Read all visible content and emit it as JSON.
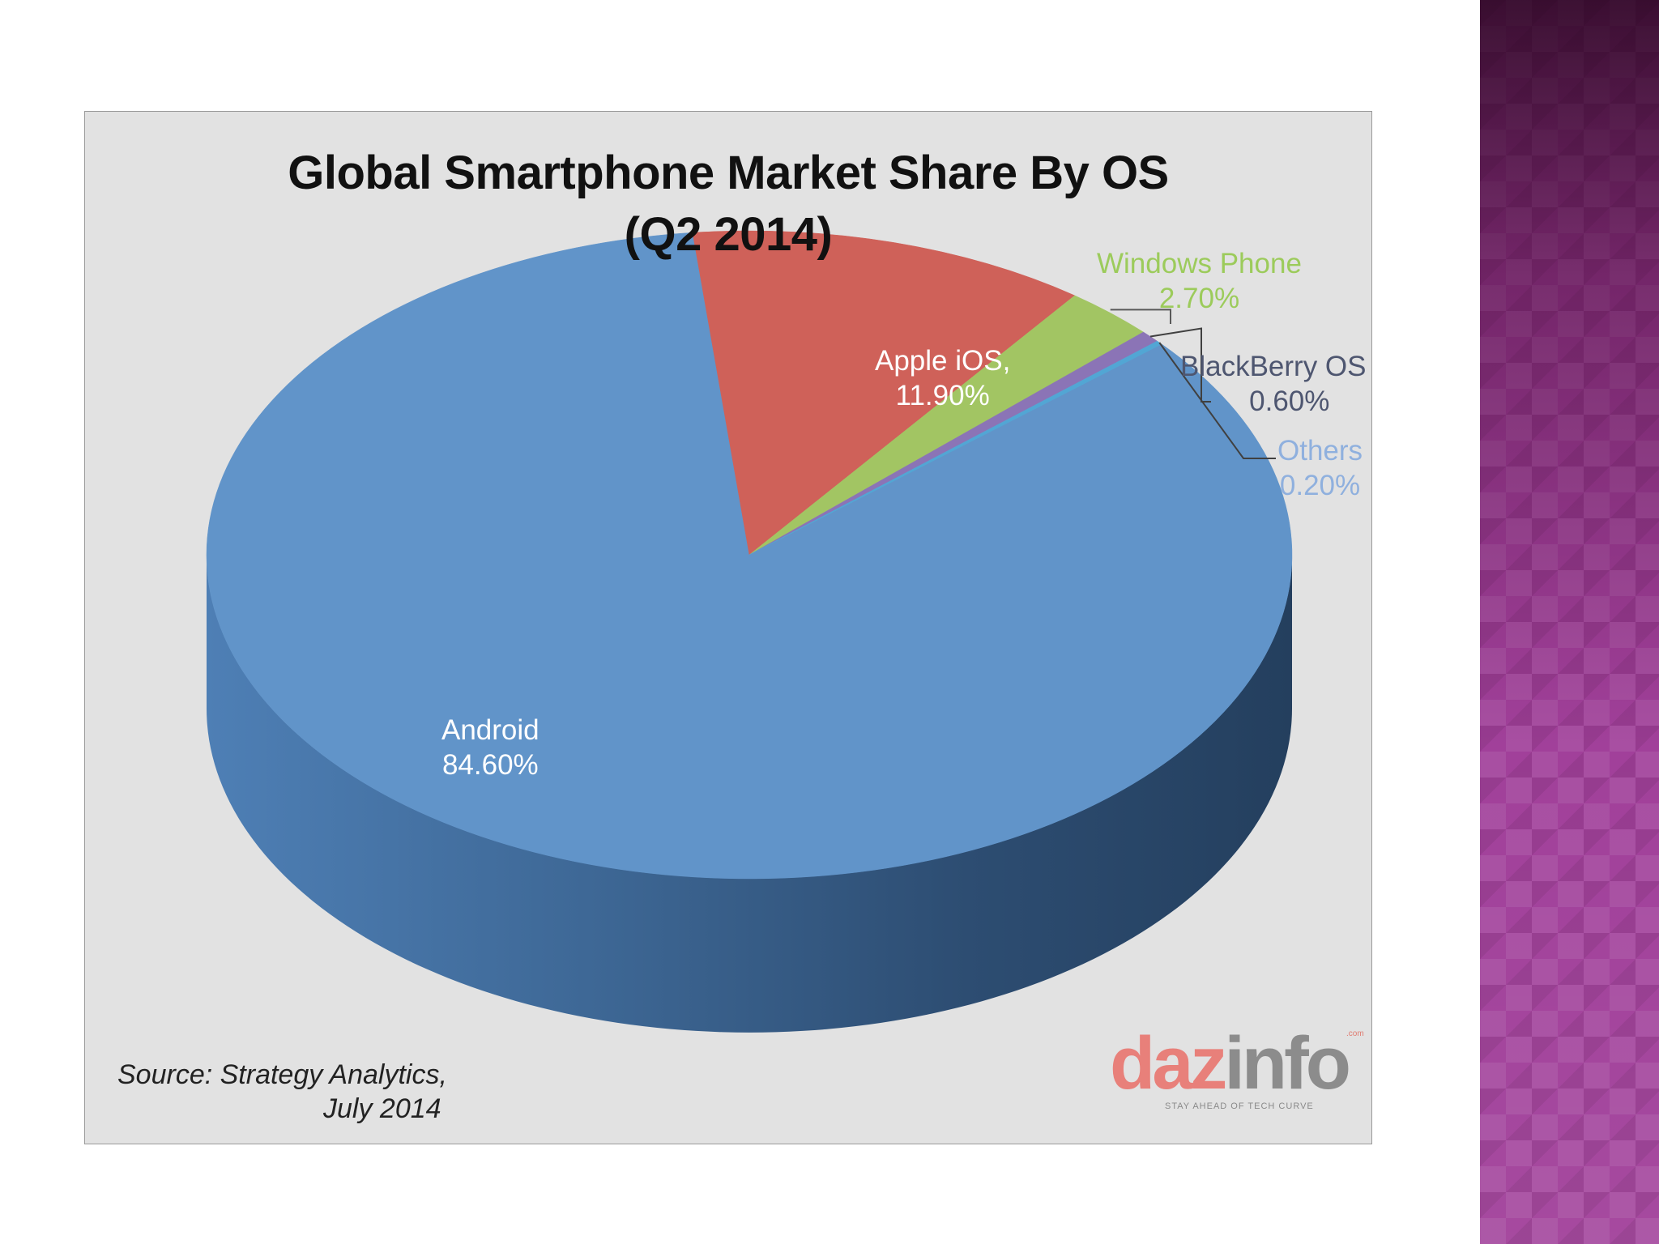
{
  "side_band": {
    "color": "#a1409a"
  },
  "chart_data": {
    "type": "pie",
    "title": "Global Smartphone Market Share By OS",
    "subtitle": "(Q2 2014)",
    "slices": [
      {
        "name": "Android",
        "value": 84.6,
        "value_label": "84.60%",
        "color": "#6194c9",
        "label_color": "#ffffff"
      },
      {
        "name": "Apple iOS,",
        "value": 11.9,
        "value_label": "11.90%",
        "color": "#cf6159",
        "label_color": "#ffffff"
      },
      {
        "name": "Windows Phone",
        "value": 2.7,
        "value_label": "2.70%",
        "color": "#a2c563",
        "label_color": "#9ccb5b"
      },
      {
        "name": "BlackBerry OS",
        "value": 0.6,
        "value_label": "0.60%",
        "color": "#8b74b6",
        "label_color": "#4e5670"
      },
      {
        "name": "Others",
        "value": 0.2,
        "value_label": "0.20%",
        "color": "#52a6d4",
        "label_color": "#8fb0de"
      }
    ],
    "source_line1": "Source:  Strategy  Analytics,",
    "source_line2": "July 2014"
  },
  "logo": {
    "part1": "daz",
    "part2": "info",
    "com": ".com",
    "tagline": "STAY AHEAD OF TECH CURVE",
    "color1": "#e8807a",
    "color2": "#8c8c8c"
  }
}
